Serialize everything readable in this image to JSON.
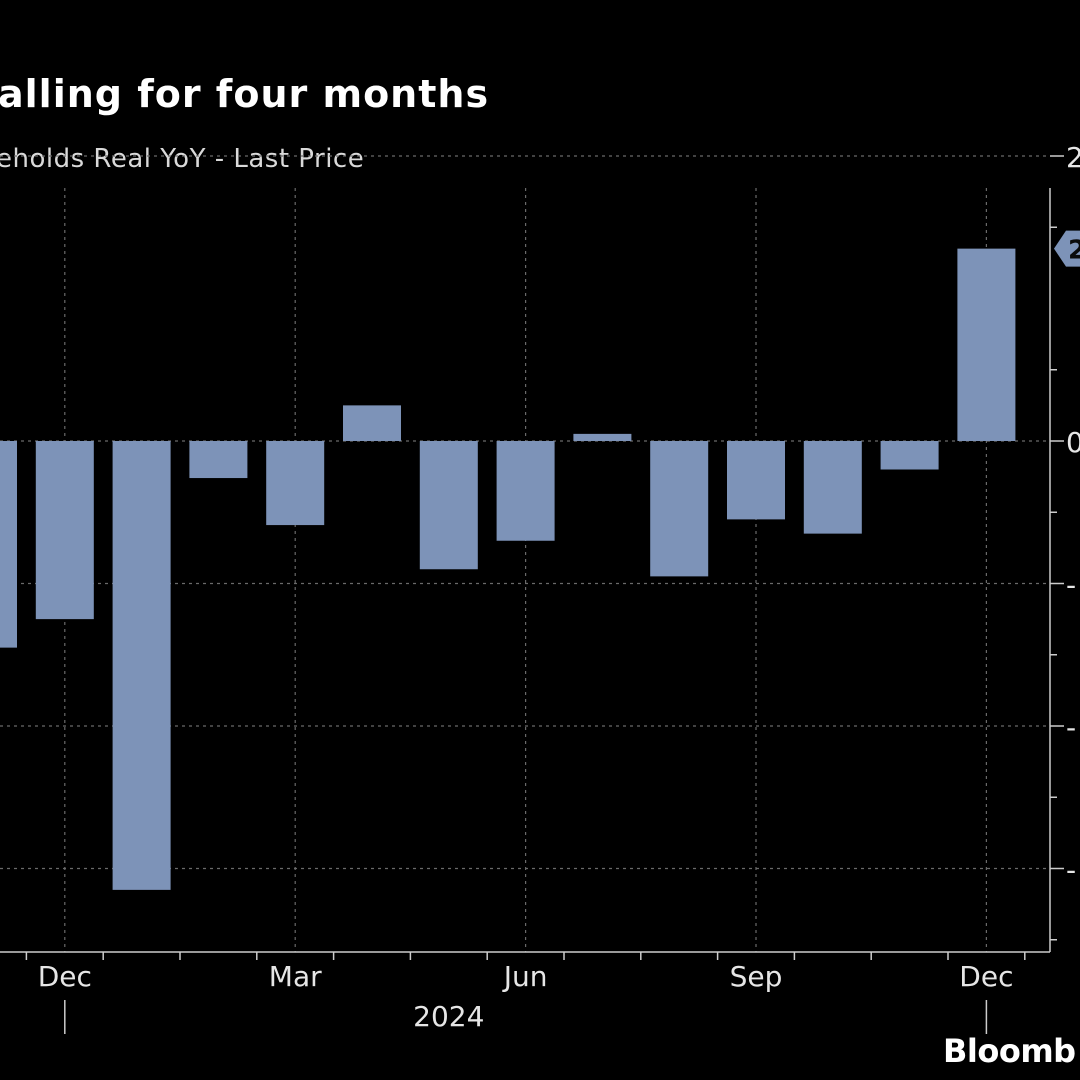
{
  "header": {
    "title": "alling for four months",
    "subtitle": "eholds Real YoY - Last Price"
  },
  "brand": "Bloomb",
  "colors": {
    "background": "#000000",
    "bar": "#7d93b8",
    "grid": "#6a6a6a",
    "axis_text": "#e6e6e6"
  },
  "chart_data": {
    "type": "bar",
    "title": "alling for four months",
    "subtitle": "eholds Real YoY - Last Price",
    "categories": [
      "2023-11",
      "2023-12",
      "2024-01",
      "2024-02",
      "2024-03",
      "2024-04",
      "2024-05",
      "2024-06",
      "2024-07",
      "2024-08",
      "2024-09",
      "2024-10",
      "2024-11",
      "2024-12"
    ],
    "values": [
      -1.45,
      -1.25,
      -3.15,
      -0.26,
      -0.59,
      0.25,
      -0.9,
      -0.7,
      0.05,
      -0.95,
      -0.55,
      -0.65,
      -0.2,
      1.35
    ],
    "ylim": [
      -3.6,
      1.8
    ],
    "y_ticks": [
      2,
      0,
      -1,
      -2,
      -3
    ],
    "y_tick_labels": [
      "2",
      "0",
      "-",
      "-",
      "-"
    ],
    "x_tick_labels": [
      {
        "label": "Dec",
        "category": "2023-12"
      },
      {
        "label": "Mar",
        "category": "2024-03"
      },
      {
        "label": "Jun",
        "category": "2024-06"
      },
      {
        "label": "Sep",
        "category": "2024-09"
      },
      {
        "label": "Dec",
        "category": "2024-12"
      }
    ],
    "year_label": "2024",
    "last_value_label": "2",
    "grid": true,
    "xlabel": "",
    "ylabel": ""
  }
}
